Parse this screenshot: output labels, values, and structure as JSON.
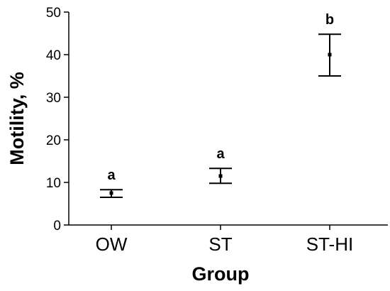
{
  "chart_data": {
    "type": "scatter",
    "title": "",
    "xlabel": "Group",
    "ylabel": "Motility, %",
    "ylim": [
      0,
      50
    ],
    "yticks": [
      0,
      10,
      20,
      30,
      40,
      50
    ],
    "grid": false,
    "categories": [
      "OW",
      "ST",
      "ST-HI"
    ],
    "series": [
      {
        "values": [
          7.5,
          11.5,
          40
        ],
        "error_low": [
          6.5,
          9.8,
          35
        ],
        "error_high": [
          8.3,
          13.3,
          44.8
        ],
        "annotations": [
          "a",
          "a",
          "b"
        ],
        "color": "#000000"
      }
    ]
  }
}
